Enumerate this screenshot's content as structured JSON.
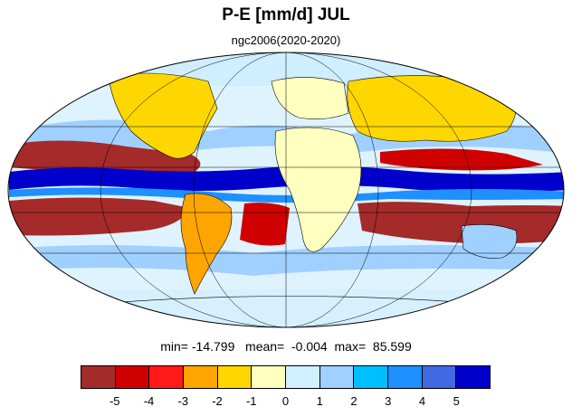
{
  "header": {
    "title": "P-E [mm/d] JUL",
    "subtitle": "ngc2006(2020-2020)"
  },
  "stats": {
    "min_label": "min=",
    "min_value": "-14.799",
    "mean_label": "mean=",
    "mean_value": "-0.004",
    "max_label": "max=",
    "max_value": "85.599"
  },
  "map": {
    "projection": "mollweide",
    "ocean_background": "#dff3ff",
    "coastline_color": "#000000",
    "graticule_color": "#000000"
  },
  "colorbar": {
    "colors": [
      "#a52a2a",
      "#d00000",
      "#ff1a1a",
      "#ffa500",
      "#ffd700",
      "#ffffc0",
      "#d0f0ff",
      "#a0d0ff",
      "#00bfff",
      "#1e90ff",
      "#4169e1",
      "#0000cd"
    ],
    "tick_labels": [
      "-5",
      "-4",
      "-3",
      "-2",
      "-1",
      "0",
      "1",
      "2",
      "3",
      "4",
      "5"
    ]
  }
}
